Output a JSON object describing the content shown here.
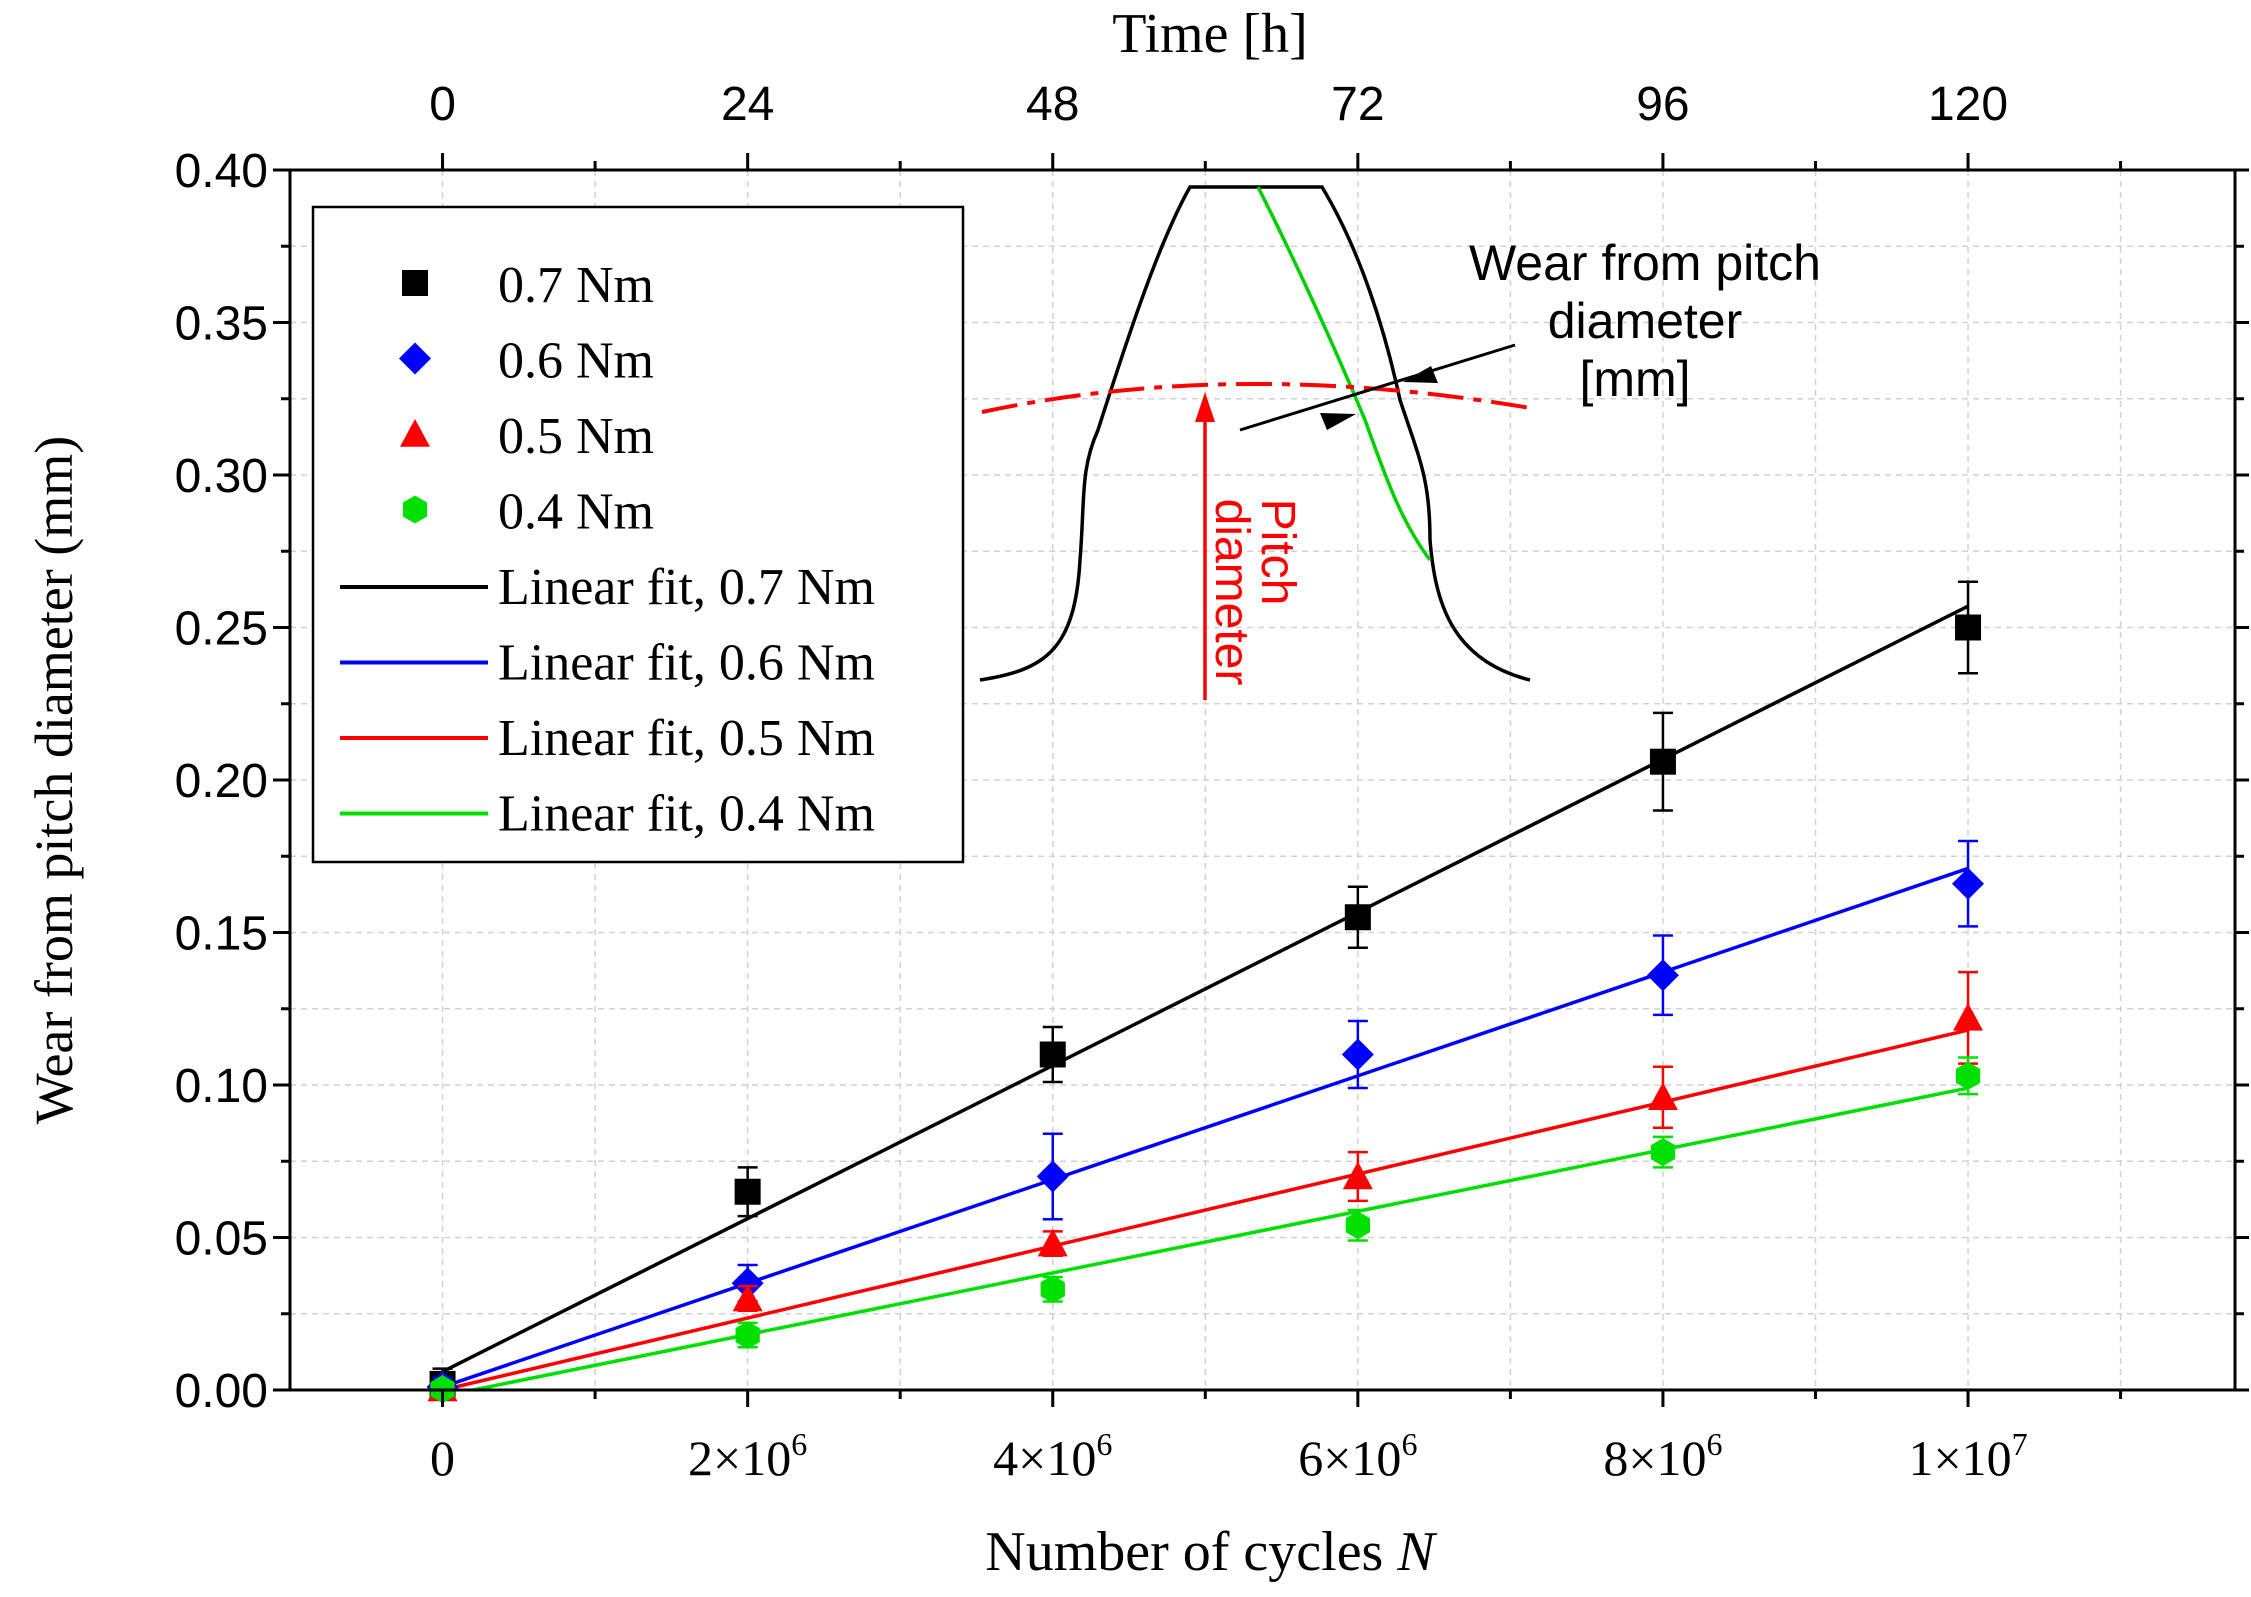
{
  "chart_data": {
    "type": "scatter",
    "xlabel_main": "Number of cycles ",
    "xlabel_var": "N",
    "xlabel_top": "Time [h]",
    "ylabel": "Wear from pitch diameter (mm)",
    "xlim": [
      -1000000,
      11750000
    ],
    "ylim": [
      0,
      0.4
    ],
    "x_ticks": [
      {
        "v": 0,
        "base": "0",
        "exp": ""
      },
      {
        "v": 2000000,
        "base": "2×10",
        "exp": "6"
      },
      {
        "v": 4000000,
        "base": "4×10",
        "exp": "6"
      },
      {
        "v": 6000000,
        "base": "6×10",
        "exp": "6"
      },
      {
        "v": 8000000,
        "base": "8×10",
        "exp": "6"
      },
      {
        "v": 10000000,
        "base": "1×10",
        "exp": "7"
      }
    ],
    "top_ticks": [
      {
        "v": 0,
        "label": "0"
      },
      {
        "v": 2000000,
        "label": "24"
      },
      {
        "v": 4000000,
        "label": "48"
      },
      {
        "v": 6000000,
        "label": "72"
      },
      {
        "v": 8000000,
        "label": "96"
      },
      {
        "v": 10000000,
        "label": "120"
      }
    ],
    "y_ticks": [
      {
        "v": 0.0,
        "label": "0.00"
      },
      {
        "v": 0.05,
        "label": "0.05"
      },
      {
        "v": 0.1,
        "label": "0.10"
      },
      {
        "v": 0.15,
        "label": "0.15"
      },
      {
        "v": 0.2,
        "label": "0.20"
      },
      {
        "v": 0.25,
        "label": "0.25"
      },
      {
        "v": 0.3,
        "label": "0.30"
      },
      {
        "v": 0.35,
        "label": "0.35"
      },
      {
        "v": 0.4,
        "label": "0.40"
      }
    ],
    "series": [
      {
        "name": "0.7 Nm",
        "marker": "square",
        "color": "#000000",
        "x": [
          0,
          2000000,
          4000000,
          6000000,
          8000000,
          10000000
        ],
        "y": [
          0.002,
          0.065,
          0.11,
          0.155,
          0.206,
          0.25
        ],
        "err": [
          0.005,
          0.008,
          0.009,
          0.01,
          0.016,
          0.015
        ]
      },
      {
        "name": "0.6 Nm",
        "marker": "diamond",
        "color": "#0000ff",
        "x": [
          0,
          2000000,
          4000000,
          6000000,
          8000000,
          10000000
        ],
        "y": [
          0.001,
          0.035,
          0.07,
          0.11,
          0.136,
          0.166
        ],
        "err": [
          0.003,
          0.006,
          0.014,
          0.011,
          0.013,
          0.014
        ]
      },
      {
        "name": "0.5 Nm",
        "marker": "triangle",
        "color": "#ff0000",
        "x": [
          0,
          2000000,
          4000000,
          6000000,
          8000000,
          10000000
        ],
        "y": [
          0.0005,
          0.03,
          0.048,
          0.07,
          0.096,
          0.122
        ],
        "err": [
          0.002,
          0.004,
          0.004,
          0.008,
          0.01,
          0.015
        ]
      },
      {
        "name": "0.4 Nm",
        "marker": "hexagon",
        "color": "#00e000",
        "x": [
          0,
          2000000,
          4000000,
          6000000,
          8000000,
          10000000
        ],
        "y": [
          0.0003,
          0.018,
          0.033,
          0.054,
          0.078,
          0.103
        ],
        "err": [
          0.002,
          0.004,
          0.004,
          0.005,
          0.005,
          0.006
        ]
      }
    ],
    "fits": [
      {
        "name": "Linear fit, 0.7 Nm",
        "color": "#000000",
        "x0": 0,
        "y0": 0.006,
        "x1": 10000000,
        "y1": 0.257
      },
      {
        "name": "Linear fit, 0.6 Nm",
        "color": "#0000ff",
        "x0": 0,
        "y0": 0.001,
        "x1": 10000000,
        "y1": 0.171
      },
      {
        "name": "Linear fit, 0.5 Nm",
        "color": "#ff0000",
        "x0": 0,
        "y0": 0.0,
        "x1": 10000000,
        "y1": 0.118
      },
      {
        "name": "Linear fit, 0.4 Nm",
        "color": "#00e000",
        "x0": 200000,
        "y0": 0.0,
        "x1": 10000000,
        "y1": 0.099
      }
    ],
    "inset": {
      "label_wear_1": "Wear from pitch",
      "label_wear_2": "diameter",
      "label_wear_3": "[mm]",
      "label_pitch_1": "Pitch",
      "label_pitch_2": "diameter"
    }
  }
}
